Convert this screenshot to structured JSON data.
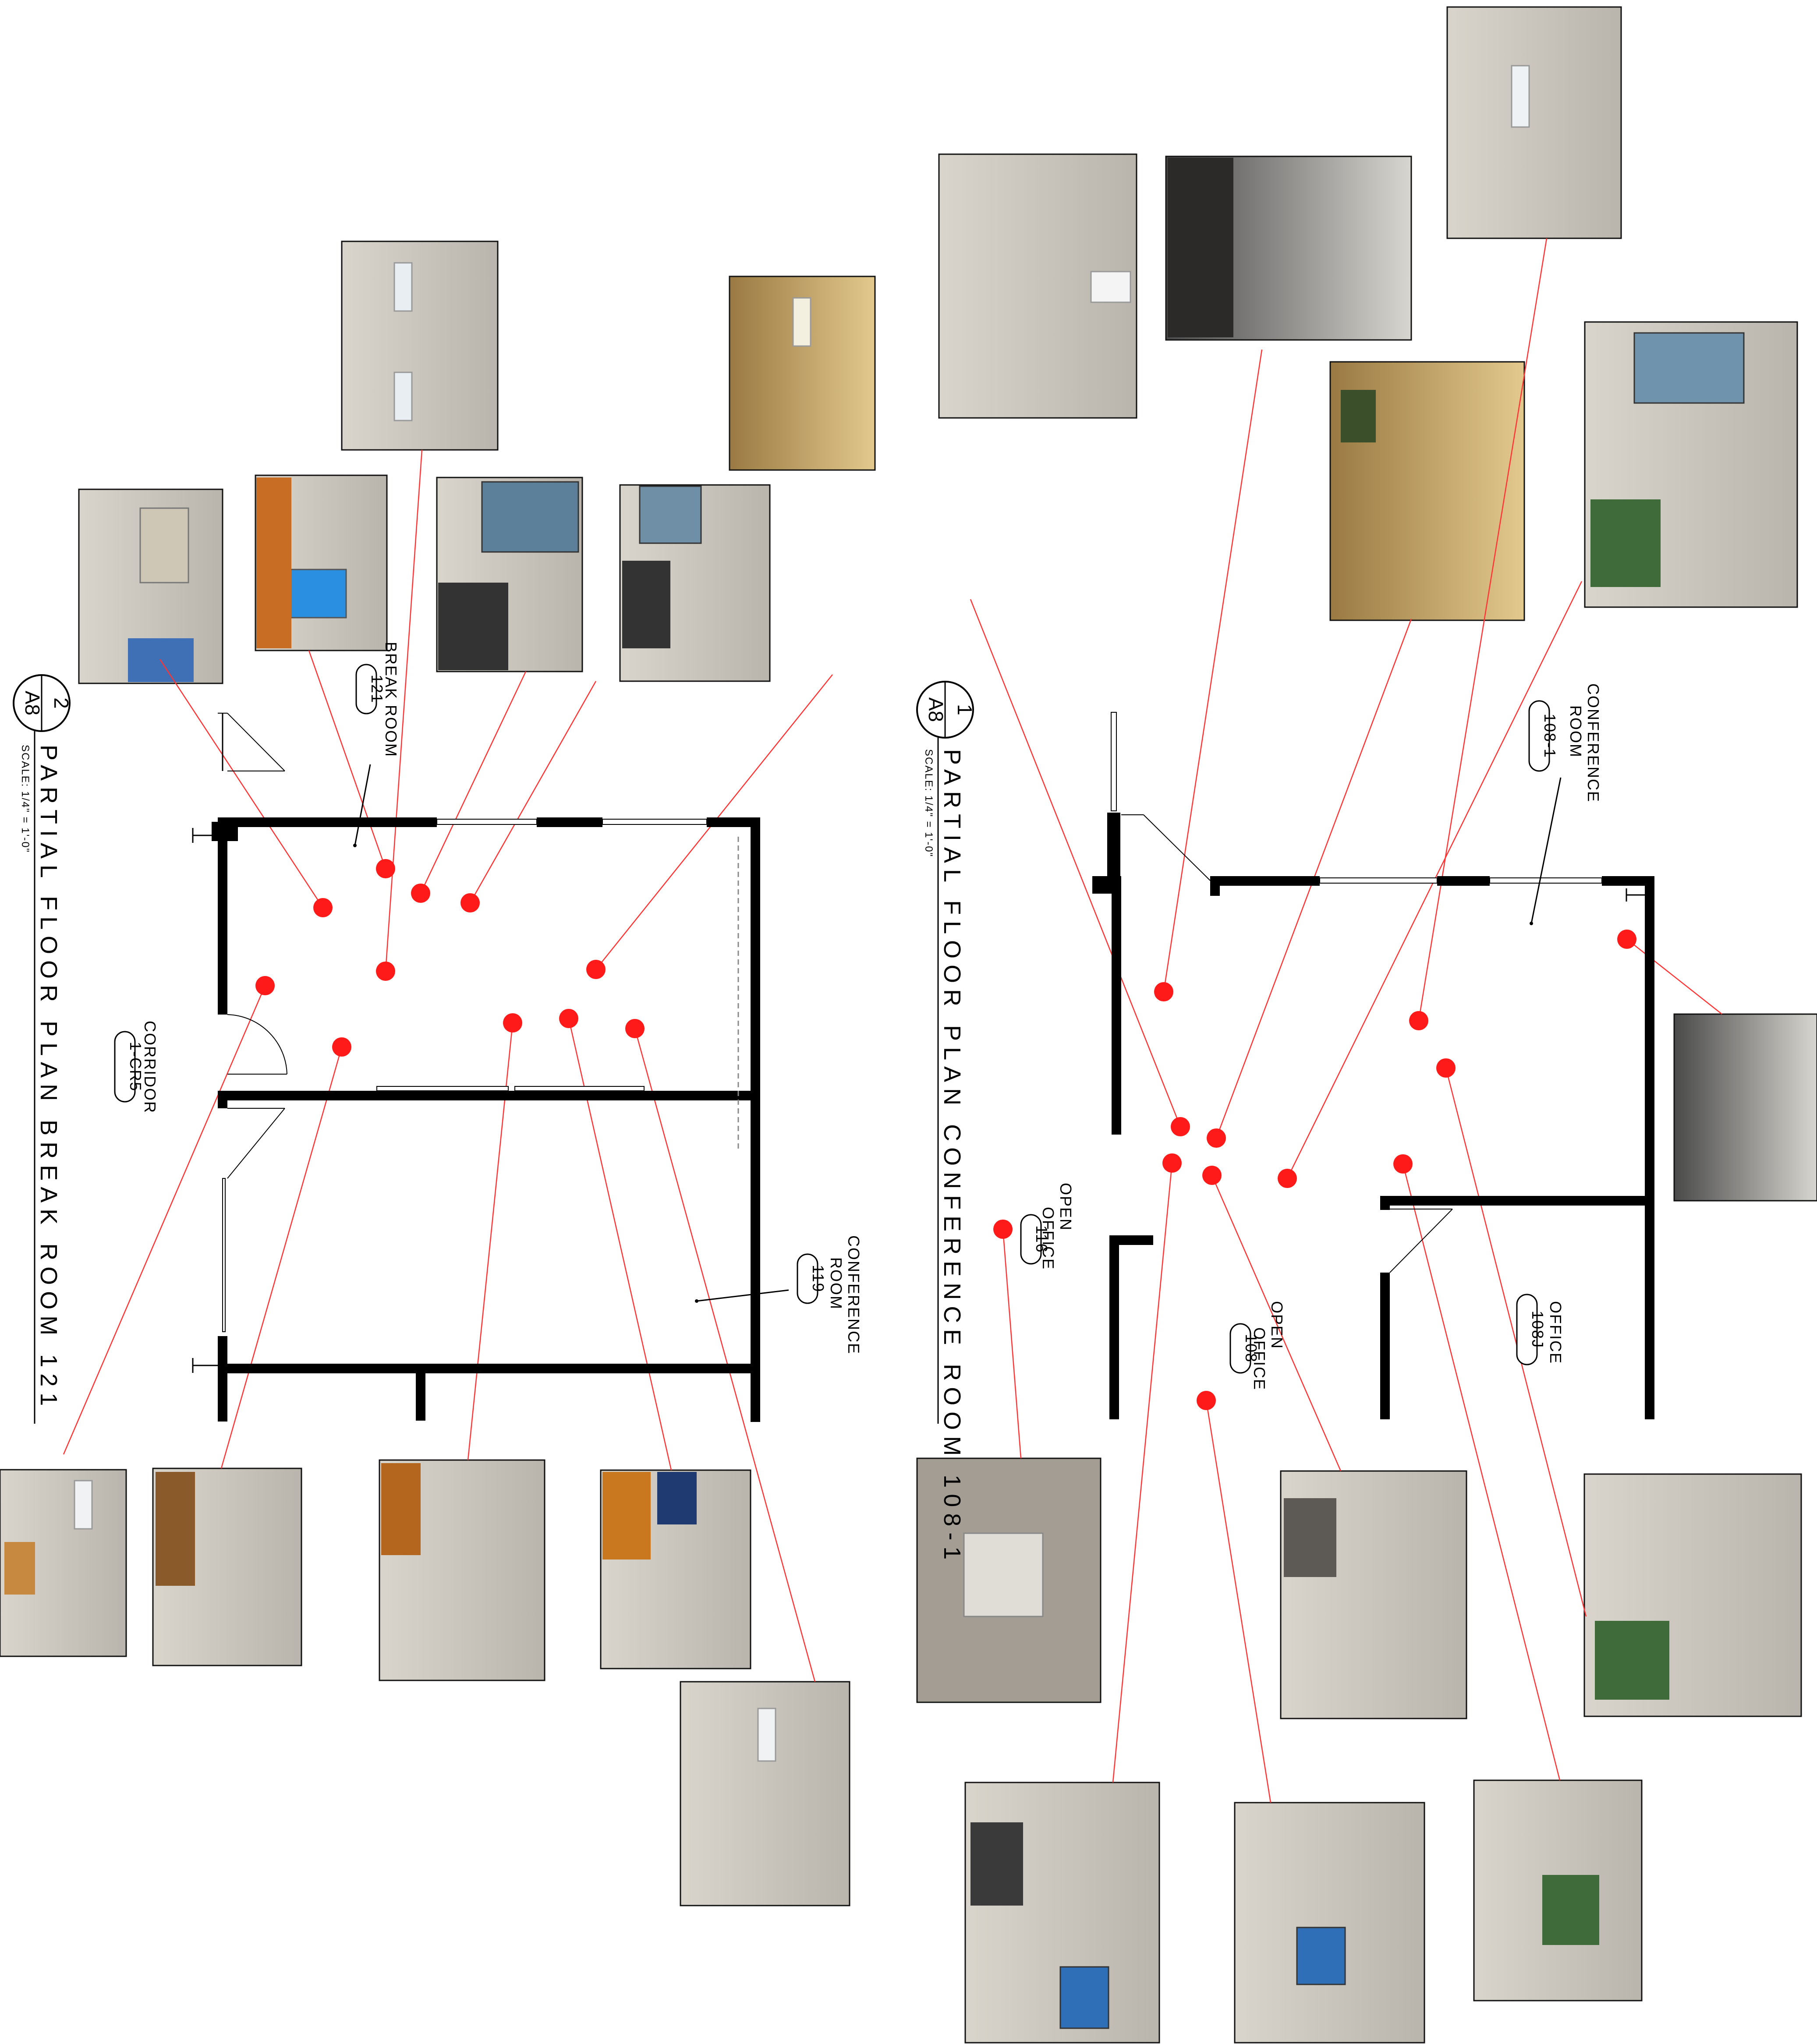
{
  "plan1": {
    "badge_num": "1",
    "badge_sheet": "A8",
    "title": "PARTIAL  FLOOR  PLAN  CONFERENCE  ROOM  108-1",
    "scale": "SCALE: 1/4\" = 1'-0\"",
    "rooms": {
      "conference_name": [
        "CONFERENCE",
        "ROOM"
      ],
      "conference_tag": "108-1",
      "office_name": "OFFICE",
      "office_tag": "108J",
      "open_office_a_name": [
        "OPEN",
        "OFFICE"
      ],
      "open_office_a_tag": "116",
      "open_office_b_name": [
        "OPEN",
        "OFFICE"
      ],
      "open_office_b_tag": "108"
    }
  },
  "plan2": {
    "badge_num": "2",
    "badge_sheet": "A8",
    "title": "PARTIAL  FLOOR  PLAN  BREAK  ROOM  121",
    "scale": "SCALE: 1/4\" = 1'-0\"",
    "rooms": {
      "break_name": "BREAK ROOM",
      "break_tag": "121",
      "corridor_name": "CORRIDOR",
      "corridor_tag": "1-CR5",
      "conference_name": [
        "CONFERENCE",
        "ROOM"
      ],
      "conference_tag": "119"
    }
  },
  "colors": {
    "marker": "#ff1a1a",
    "leader": "#ff3333",
    "wall": "#000000"
  }
}
